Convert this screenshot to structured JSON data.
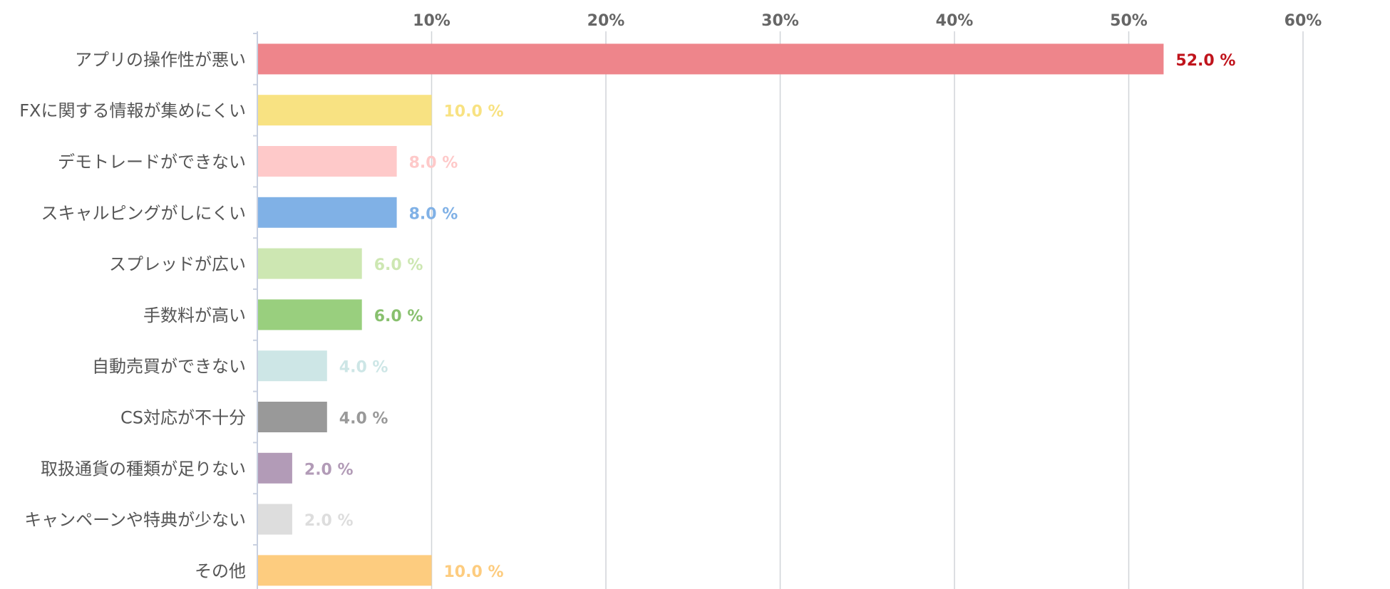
{
  "chart_data": {
    "type": "bar",
    "orientation": "horizontal",
    "xlim": [
      0,
      60
    ],
    "x_ticks": [
      {
        "value": 10,
        "label": "10%"
      },
      {
        "value": 20,
        "label": "20%"
      },
      {
        "value": 30,
        "label": "30%"
      },
      {
        "value": 40,
        "label": "40%"
      },
      {
        "value": 50,
        "label": "50%"
      },
      {
        "value": 60,
        "label": "60%"
      }
    ],
    "tick_position": "top",
    "grid": true,
    "categories": [
      "アプリの操作性が悪い",
      "FXに関する情報が集めにくい",
      "デモトレードができない",
      "スキャルピングがしにくい",
      "スプレッドが広い",
      "手数料が高い",
      "自動売買ができない",
      "CS対応が不十分",
      "取扱通貨の種類が足りない",
      "キャンペーンや特典が少ない",
      "その他"
    ],
    "values": [
      52.0,
      10.0,
      8.0,
      8.0,
      6.0,
      6.0,
      4.0,
      4.0,
      2.0,
      2.0,
      10.0
    ],
    "value_labels": [
      "52.0 %",
      "10.0 %",
      "8.0 %",
      "8.0 %",
      "6.0 %",
      "6.0 %",
      "4.0 %",
      "4.0 %",
      "2.0 %",
      "2.0 %",
      "10.0 %"
    ],
    "bar_colors": [
      "#ee858b",
      "#f8e282",
      "#fec9c9",
      "#80b1e6",
      "#cde7b2",
      "#99cf7e",
      "#cde6e6",
      "#999999",
      "#b29bb7",
      "#dddddd",
      "#fdcc7f"
    ],
    "label_colors": [
      "#c0141c",
      "#f8e282",
      "#fec9c9",
      "#80b1e6",
      "#cde7b2",
      "#88c06e",
      "#cde6e6",
      "#999999",
      "#b29bb7",
      "#dddddd",
      "#fdcc7f"
    ],
    "colors": {
      "grid": "#d0d4d8",
      "axis": "#c8d0e0",
      "tick_text": "#666666",
      "category_text": "#555555"
    }
  }
}
